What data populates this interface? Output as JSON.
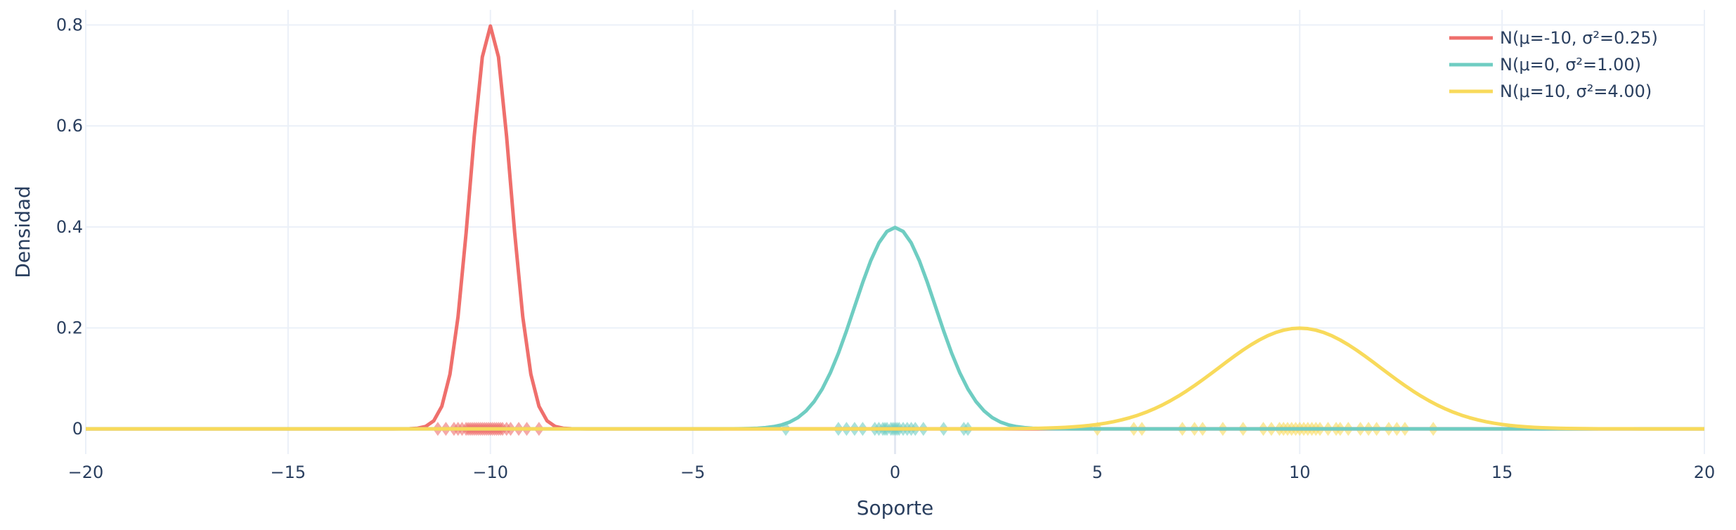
{
  "chart_data": {
    "type": "line",
    "xlabel": "Soporte",
    "ylabel": "Densidad",
    "xlim": [
      -20,
      20
    ],
    "ylim": [
      -0.05,
      0.83
    ],
    "x_ticks": [
      -20,
      -15,
      -10,
      -5,
      0,
      5,
      10,
      15,
      20
    ],
    "x_tick_labels": [
      "−20",
      "−15",
      "−10",
      "−5",
      "0",
      "5",
      "10",
      "15",
      "20"
    ],
    "y_ticks": [
      0,
      0.2,
      0.4,
      0.6,
      0.8
    ],
    "y_tick_labels": [
      "0",
      "0.2",
      "0.4",
      "0.6",
      "0.8"
    ],
    "grid": true,
    "legend_position": "top-right",
    "series": [
      {
        "name": "N(μ=-10, σ²=0.25)",
        "color": "#ef6f6c",
        "mu": -10,
        "variance": 0.25,
        "samples": [
          -11.3,
          -11.1,
          -10.9,
          -10.8,
          -10.7,
          -10.6,
          -10.55,
          -10.5,
          -10.45,
          -10.4,
          -10.35,
          -10.3,
          -10.25,
          -10.2,
          -10.15,
          -10.1,
          -10.05,
          -10.0,
          -9.95,
          -9.9,
          -9.85,
          -9.8,
          -9.75,
          -9.7,
          -9.6,
          -9.5,
          -9.3,
          -9.1,
          -8.8
        ]
      },
      {
        "name": "N(μ=0, σ²=1.00)",
        "color": "#6fcdc2",
        "mu": 0,
        "variance": 1.0,
        "samples": [
          -2.7,
          -1.4,
          -1.2,
          -1.0,
          -0.8,
          -0.5,
          -0.4,
          -0.3,
          -0.25,
          -0.2,
          -0.1,
          -0.05,
          0.0,
          0.05,
          0.1,
          0.2,
          0.3,
          0.4,
          0.5,
          0.7,
          1.2,
          1.7,
          1.8
        ]
      },
      {
        "name": "N(μ=10, σ²=4.00)",
        "color": "#f8da5b",
        "mu": 10,
        "variance": 4.0,
        "samples": [
          5.0,
          5.9,
          6.1,
          7.1,
          7.4,
          7.6,
          8.1,
          8.6,
          9.1,
          9.3,
          9.5,
          9.6,
          9.7,
          9.8,
          9.9,
          10.0,
          10.1,
          10.2,
          10.3,
          10.4,
          10.5,
          10.7,
          10.9,
          11.0,
          11.2,
          11.5,
          11.7,
          11.9,
          12.2,
          12.4,
          12.6,
          13.3
        ]
      }
    ]
  }
}
